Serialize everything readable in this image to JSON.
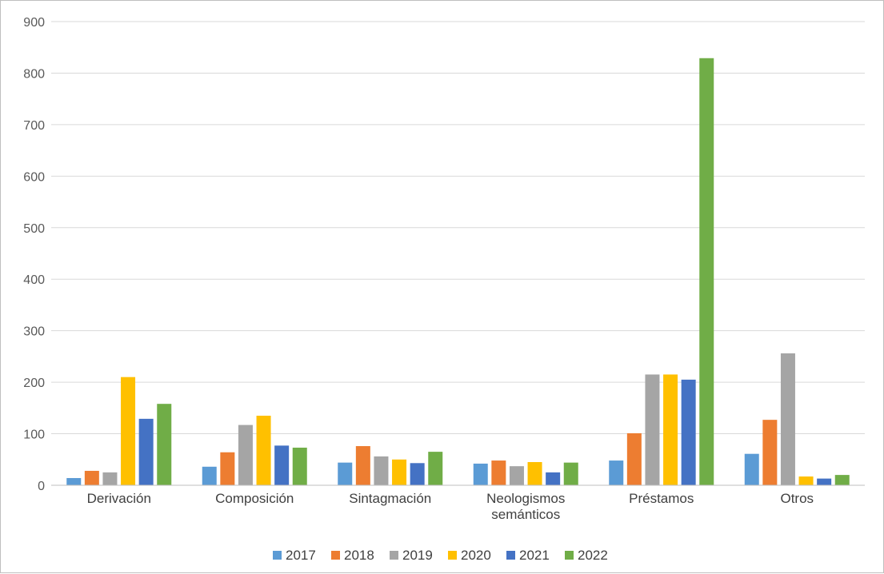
{
  "chart_data": {
    "type": "bar",
    "categories": [
      [
        "Derivación"
      ],
      [
        "Composición"
      ],
      [
        "Sintagmación"
      ],
      [
        "Neologismos",
        "semánticos"
      ],
      [
        "Préstamos"
      ],
      [
        "Otros"
      ]
    ],
    "series": [
      {
        "name": "2017",
        "color": "#5b9bd5",
        "values": [
          14,
          36,
          44,
          42,
          48,
          61
        ]
      },
      {
        "name": "2018",
        "color": "#ed7d31",
        "values": [
          28,
          64,
          76,
          48,
          101,
          127
        ]
      },
      {
        "name": "2019",
        "color": "#a5a5a5",
        "values": [
          25,
          117,
          56,
          37,
          215,
          256
        ]
      },
      {
        "name": "2020",
        "color": "#ffc000",
        "values": [
          210,
          135,
          50,
          45,
          215,
          17
        ]
      },
      {
        "name": "2021",
        "color": "#4472c4",
        "values": [
          129,
          77,
          43,
          25,
          205,
          13
        ]
      },
      {
        "name": "2022",
        "color": "#70ad47",
        "values": [
          158,
          73,
          65,
          44,
          829,
          20
        ]
      }
    ],
    "yticks": [
      "0",
      "100",
      "200",
      "300",
      "400",
      "500",
      "600",
      "700",
      "800",
      "900"
    ],
    "ylim": [
      0,
      900
    ],
    "grid": true,
    "legend_position": "bottom",
    "title": "",
    "xlabel": "",
    "ylabel": ""
  }
}
